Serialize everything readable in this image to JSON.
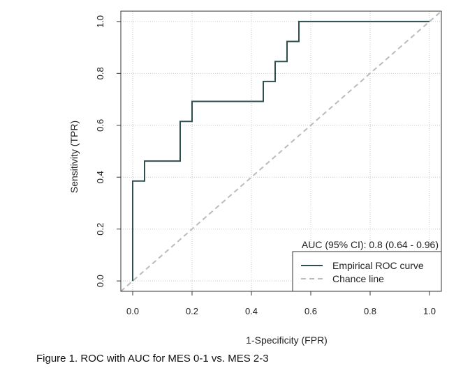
{
  "caption": "Figure 1. ROC with AUC for MES 0-1 vs. MES 2-3",
  "chart_data": {
    "type": "line",
    "title": "",
    "xlabel": "1-Specificity (FPR)",
    "ylabel": "Sensitivity (TPR)",
    "xlim": [
      -0.04,
      1.04
    ],
    "ylim": [
      -0.04,
      1.04
    ],
    "xticks": [
      0.0,
      0.2,
      0.4,
      0.6,
      0.8,
      1.0
    ],
    "yticks": [
      0.0,
      0.2,
      0.4,
      0.6,
      0.8,
      1.0
    ],
    "xtick_labels": [
      "0.0",
      "0.2",
      "0.4",
      "0.6",
      "0.8",
      "1.0"
    ],
    "ytick_labels": [
      "0.0",
      "0.2",
      "0.4",
      "0.6",
      "0.8",
      "1.0"
    ],
    "grid": true,
    "annotation": "AUC (95% CI): 0.8 (0.64 - 0.96)",
    "legend": {
      "placement": "bottom-right",
      "entries": [
        "Empirical ROC curve",
        "Chance line"
      ]
    },
    "series": [
      {
        "name": "Empirical ROC curve",
        "color": "#2f4f4f",
        "style": "step",
        "x": [
          0.0,
          0.0,
          0.04,
          0.04,
          0.16,
          0.16,
          0.2,
          0.2,
          0.44,
          0.44,
          0.48,
          0.48,
          0.52,
          0.52,
          0.56,
          0.56,
          1.0
        ],
        "y": [
          0.0,
          0.385,
          0.385,
          0.462,
          0.462,
          0.615,
          0.615,
          0.692,
          0.692,
          0.769,
          0.769,
          0.846,
          0.846,
          0.923,
          0.923,
          1.0,
          1.0
        ]
      },
      {
        "name": "Chance line",
        "color": "#bbbbbb",
        "style": "dashed",
        "x": [
          -0.04,
          1.04
        ],
        "y": [
          -0.04,
          1.04
        ]
      }
    ]
  }
}
